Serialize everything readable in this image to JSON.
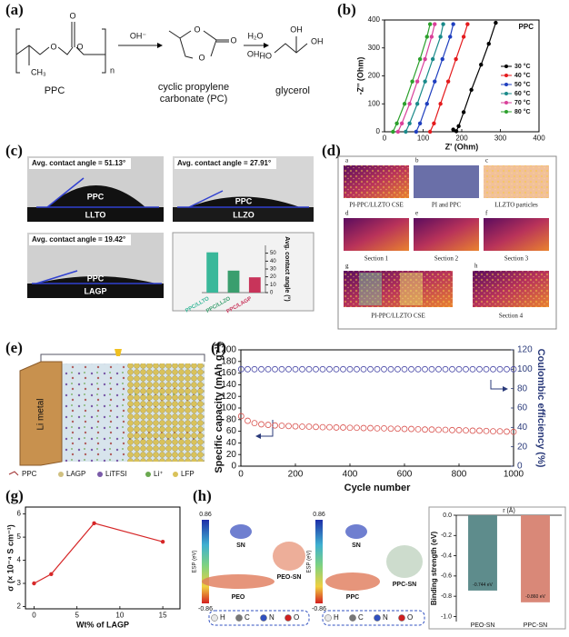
{
  "panels": {
    "labels": [
      "(a)",
      "(b)",
      "(c)",
      "(d)",
      "(e)",
      "(f)",
      "(g)",
      "(h)"
    ],
    "a": {
      "ppc": "PPC",
      "pc": [
        "cyclic propylene",
        "carbonate (PC)"
      ],
      "glycerol": "glycerol",
      "conditions": [
        "OH⁻",
        "H₂O",
        "OH⁻"
      ],
      "atoms": [
        "O",
        "O",
        "O",
        "n",
        "CH₃",
        "O",
        "O",
        "O",
        "HO",
        "OH",
        "OH"
      ]
    },
    "c": {
      "images": [
        {
          "angle": "Avg. contact angle = 51.13°",
          "film": "PPC",
          "substrate": "LLTO"
        },
        {
          "angle": "Avg. contact angle = 27.91°",
          "film": "PPC",
          "substrate": "LLZO"
        },
        {
          "angle": "Avg. contact angle = 19.42°",
          "film": "PPC",
          "substrate": "LAGP"
        }
      ]
    },
    "d": {
      "tiles": [
        {
          "letter": "a",
          "caption": "PI-PPC/LLZTO CSE"
        },
        {
          "letter": "b",
          "caption": "PI and PPC"
        },
        {
          "letter": "c",
          "caption": "LLZTO particles"
        },
        {
          "letter": "d",
          "caption": "Section 1"
        },
        {
          "letter": "e",
          "caption": "Section 2"
        },
        {
          "letter": "f",
          "caption": "Section 3"
        },
        {
          "letter": "g",
          "caption": "PI-PPC/LLZTO CSE"
        },
        {
          "letter": "h",
          "caption": "Section 4"
        }
      ]
    },
    "e": {
      "electrode": "Li metal",
      "legend": [
        "PPC",
        "LAGP",
        "LiTFSI",
        "Li⁺",
        "LFP"
      ]
    },
    "h": {
      "scale_max": "0.86",
      "scale_min": "-0.86",
      "scale_title": "ESP (eV)",
      "left": [
        "SN",
        "PEO",
        "PEO-SN"
      ],
      "right": [
        "SN",
        "PPC",
        "PPC-SN"
      ],
      "atoms": [
        "H",
        "C",
        "N",
        "O"
      ]
    }
  },
  "chart_data": [
    {
      "type": "line",
      "legend_title": "PPC",
      "xlabel": "Z' (Ohm)",
      "ylabel": "-Z'' (Ohm)",
      "xlim": [
        0,
        400
      ],
      "ylim": [
        0,
        400
      ],
      "xticks": [
        0,
        100,
        200,
        300,
        400
      ],
      "yticks": [
        0,
        100,
        200,
        300,
        400
      ],
      "series": [
        {
          "name": "30 °C",
          "color": "#000000",
          "x": [
            178,
            186,
            192,
            205,
            225,
            250,
            270,
            288
          ],
          "values": [
            8,
            2,
            20,
            70,
            150,
            240,
            315,
            390
          ]
        },
        {
          "name": "40 °C",
          "color": "#e41a1c",
          "x": [
            118,
            128,
            145,
            165,
            185,
            205,
            215
          ],
          "values": [
            0,
            30,
            100,
            180,
            260,
            340,
            385
          ]
        },
        {
          "name": "50 °C",
          "color": "#1f3fbf",
          "x": [
            82,
            92,
            110,
            130,
            150,
            170,
            178
          ],
          "values": [
            0,
            30,
            100,
            180,
            260,
            340,
            385
          ]
        },
        {
          "name": "60 °C",
          "color": "#1a8a8a",
          "x": [
            55,
            65,
            85,
            105,
            125,
            145,
            152
          ],
          "values": [
            0,
            30,
            100,
            180,
            260,
            340,
            385
          ]
        },
        {
          "name": "70 °C",
          "color": "#d9409a",
          "x": [
            35,
            45,
            65,
            85,
            105,
            122,
            130
          ],
          "values": [
            0,
            30,
            100,
            180,
            260,
            340,
            385
          ]
        },
        {
          "name": "80 °C",
          "color": "#2ca02c",
          "x": [
            22,
            32,
            52,
            72,
            92,
            110,
            118
          ],
          "values": [
            0,
            30,
            100,
            180,
            260,
            340,
            385
          ]
        }
      ]
    },
    {
      "type": "bar",
      "ylabel": "Avg. contact angle (°)",
      "categories": [
        "PPC/LLTO",
        "PPC/LLZO",
        "PPC/LAGP"
      ],
      "values": [
        51.13,
        27.91,
        19.42
      ],
      "colors": [
        "#39b89a",
        "#3a9e6e",
        "#c8345a"
      ],
      "ylim": [
        0,
        60
      ],
      "yticks": [
        0,
        10,
        20,
        30,
        40,
        50
      ]
    },
    {
      "type": "scatter",
      "xlabel": "Cycle number",
      "ylabel": "Specific capacity (mAh g⁻¹)",
      "y2label": "Coulombic efficiency (%)",
      "xlim": [
        0,
        1000
      ],
      "ylim": [
        0,
        200
      ],
      "y2lim": [
        0,
        120
      ],
      "xticks": [
        0,
        200,
        400,
        600,
        800,
        1000
      ],
      "yticks": [
        0,
        20,
        40,
        60,
        80,
        100,
        120,
        140,
        160,
        180,
        200
      ],
      "y2ticks": [
        0,
        20,
        40,
        60,
        80,
        100,
        120
      ],
      "x": [
        1,
        25,
        50,
        75,
        100,
        125,
        150,
        175,
        200,
        225,
        250,
        275,
        300,
        325,
        350,
        375,
        400,
        425,
        450,
        475,
        500,
        525,
        550,
        575,
        600,
        625,
        650,
        675,
        700,
        725,
        750,
        775,
        800,
        825,
        850,
        875,
        900,
        925,
        950,
        975,
        1000
      ],
      "series": [
        {
          "color": "#d9534f",
          "values": [
            86,
            78,
            74,
            72,
            71,
            70,
            69.5,
            69,
            68.5,
            68,
            68,
            67.5,
            67,
            67,
            66.5,
            66.5,
            66,
            66,
            65.5,
            65.5,
            65,
            65,
            64.5,
            64.5,
            64,
            64,
            63.5,
            63,
            63,
            62.5,
            62.5,
            62,
            62,
            61.5,
            61,
            61,
            60.5,
            60,
            60,
            59.5,
            59
          ]
        },
        {
          "color": "#4a4aa8",
          "axis": "y2",
          "values": [
            100,
            100,
            100,
            100,
            100,
            100,
            100,
            100,
            100,
            100,
            100,
            100,
            100,
            100,
            100,
            100,
            100,
            100,
            100,
            100,
            100,
            100,
            100,
            100,
            100,
            100,
            100,
            100,
            100,
            100,
            100,
            100,
            100,
            100,
            100,
            100,
            100,
            100,
            100,
            100,
            100
          ]
        }
      ]
    },
    {
      "type": "line",
      "xlabel": "Wt% of LAGP",
      "ylabel": "σ (× 10⁻⁴ S cm⁻¹)",
      "x": [
        0,
        2,
        7,
        15
      ],
      "values": [
        3.0,
        3.4,
        5.6,
        4.8
      ],
      "color": "#d62728",
      "xlim": [
        -1,
        17
      ],
      "ylim": [
        1.9,
        6.3
      ],
      "xticks": [
        0,
        5,
        10,
        15
      ],
      "yticks": [
        2,
        3,
        4,
        5,
        6
      ]
    },
    {
      "type": "bar",
      "title": "r (Å)",
      "ylabel": "Binding strength (eV)",
      "categories": [
        "PEO-SN",
        "PPC-SN"
      ],
      "values": [
        -0.744,
        -0.86
      ],
      "value_labels": [
        "-0.744 eV",
        "-0.860 eV"
      ],
      "colors": [
        "#5e8c8c",
        "#d98878"
      ],
      "ylim": [
        -1.05,
        0
      ],
      "yticks": [
        {
          "value": 0,
          "label": "0.0"
        },
        -0.2,
        -0.4,
        -0.6,
        -0.8,
        {
          "value": -1,
          "label": "-1.0"
        }
      ]
    }
  ]
}
